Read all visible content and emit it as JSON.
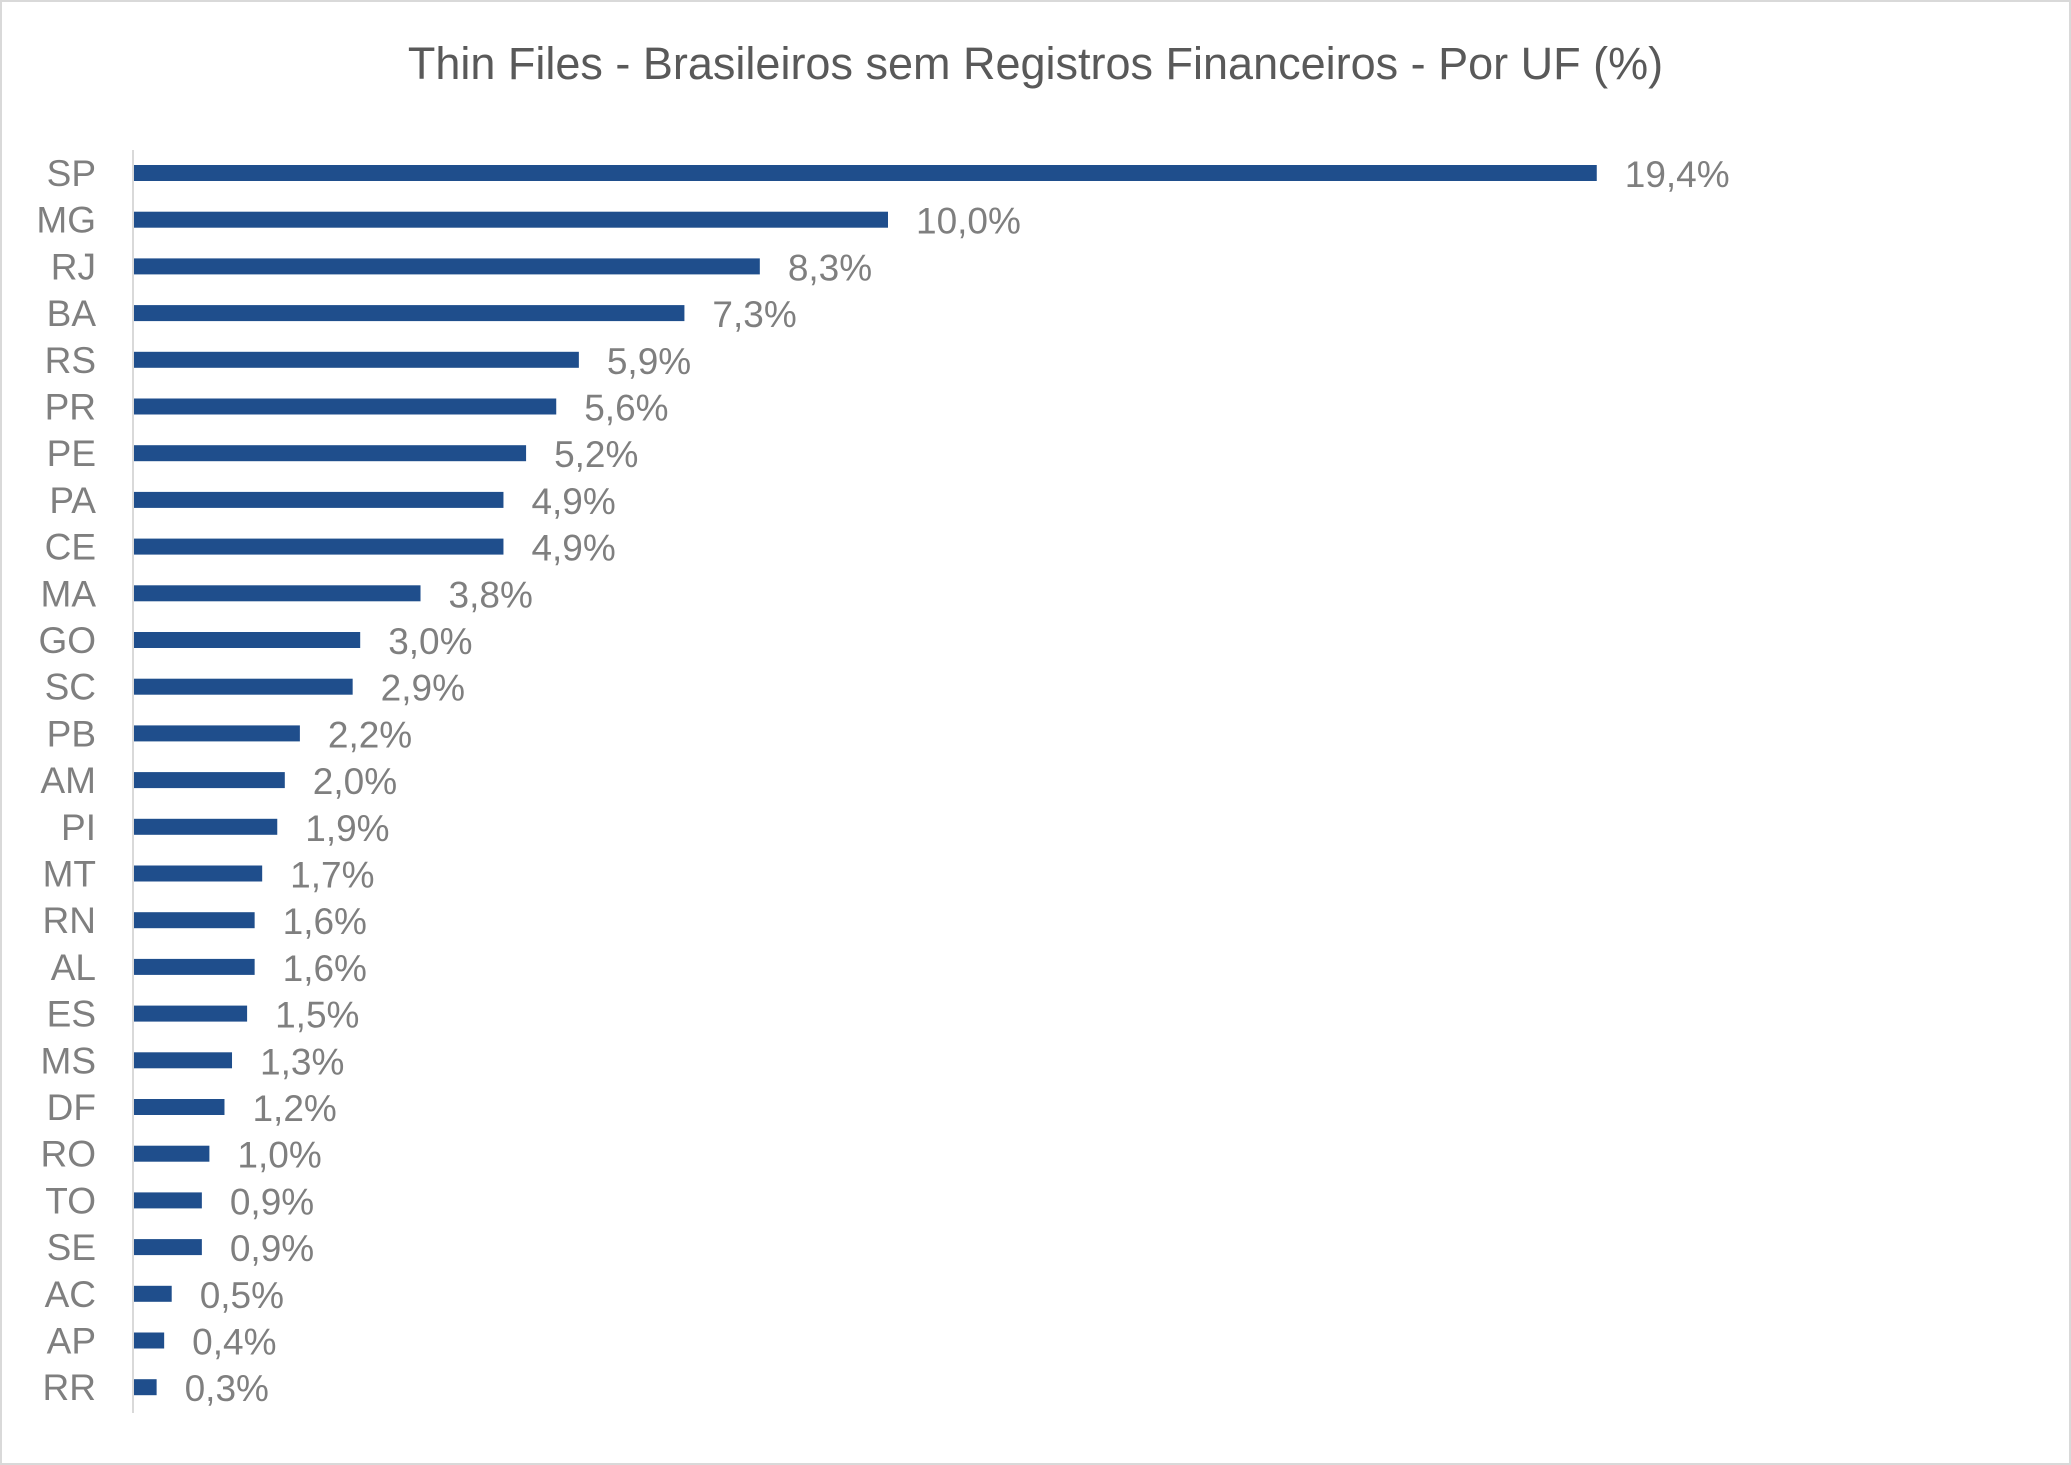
{
  "chart_data": {
    "type": "bar",
    "orientation": "horizontal",
    "title": "Thin Files - Brasileiros sem Registros Financeiros - Por UF (%)",
    "xlabel": "",
    "ylabel": "",
    "grid": false,
    "legend": "none",
    "bar_color": "#1F4E8C",
    "categories": [
      "SP",
      "MG",
      "RJ",
      "BA",
      "RS",
      "PR",
      "PE",
      "PA",
      "CE",
      "MA",
      "GO",
      "SC",
      "PB",
      "AM",
      "PI",
      "MT",
      "RN",
      "AL",
      "ES",
      "MS",
      "DF",
      "RO",
      "TO",
      "SE",
      "AC",
      "AP",
      "RR"
    ],
    "values": [
      19.4,
      10.0,
      8.3,
      7.3,
      5.9,
      5.6,
      5.2,
      4.9,
      4.9,
      3.8,
      3.0,
      2.9,
      2.2,
      2.0,
      1.9,
      1.7,
      1.6,
      1.6,
      1.5,
      1.3,
      1.2,
      1.0,
      0.9,
      0.9,
      0.5,
      0.4,
      0.3
    ],
    "data_labels": [
      "19,4%",
      "10,0%",
      "8,3%",
      "7,3%",
      "5,9%",
      "5,6%",
      "5,2%",
      "4,9%",
      "4,9%",
      "3,8%",
      "3,0%",
      "2,9%",
      "2,2%",
      "2,0%",
      "1,9%",
      "1,7%",
      "1,6%",
      "1,6%",
      "1,5%",
      "1,3%",
      "1,2%",
      "1,0%",
      "0,9%",
      "0,9%",
      "0,5%",
      "0,4%",
      "0,3%"
    ]
  }
}
